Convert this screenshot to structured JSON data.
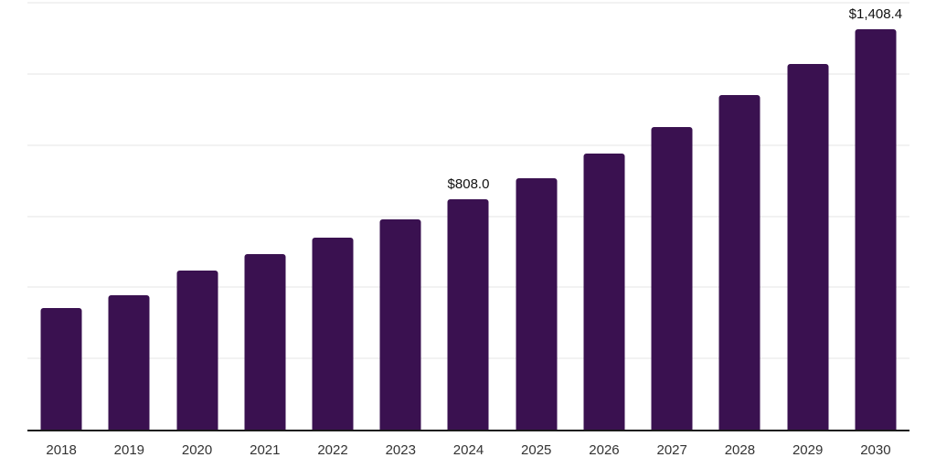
{
  "chart": {
    "background_color": "#ffffff",
    "bar_color": "#3A1150",
    "axis_color": "#1a1a1a",
    "gridline_color": "#f2f2f2",
    "annotation_color": "#111111",
    "tick_label_color": "#333333"
  },
  "chart_data": {
    "type": "bar",
    "title": "",
    "xlabel": "",
    "ylabel": "",
    "categories": [
      "2018",
      "2019",
      "2020",
      "2021",
      "2022",
      "2023",
      "2024",
      "2025",
      "2026",
      "2027",
      "2028",
      "2029",
      "2030"
    ],
    "values": [
      426,
      473,
      558,
      617,
      675,
      740,
      808.0,
      884,
      971,
      1064,
      1176,
      1285,
      1408.4
    ],
    "annotations": {
      "2024": "$808.0",
      "2030": "$1,408.4"
    },
    "ylim": [
      0,
      1500
    ],
    "grid_interval": 250,
    "grid": true,
    "y_axis_labels_visible": false,
    "legend_position": "none"
  }
}
